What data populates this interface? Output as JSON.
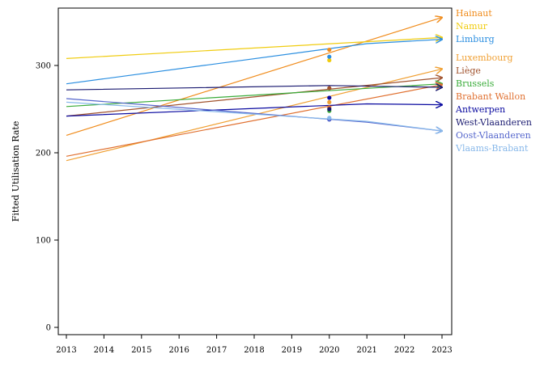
{
  "chart_data": {
    "type": "line",
    "title": "",
    "xlabel": "",
    "ylabel": "Fitted Utilisation Rate",
    "xlim": [
      2013,
      2023
    ],
    "ylim": [
      0,
      360
    ],
    "xticks": [
      2013,
      2014,
      2015,
      2016,
      2017,
      2018,
      2019,
      2020,
      2021,
      2022,
      2023
    ],
    "yticks": [
      0,
      100,
      200,
      300
    ],
    "grid": false,
    "legend_placement": "right",
    "series": [
      {
        "name": "Hainaut",
        "color": "#f08c1c",
        "x": [
          2013,
          2023
        ],
        "y": [
          220,
          355
        ],
        "point_2020": 318
      },
      {
        "name": "Namur",
        "color": "#f0cc10",
        "x": [
          2013,
          2023
        ],
        "y": [
          308,
          332
        ],
        "point_2020": 306
      },
      {
        "name": "Limburg",
        "color": "#2a8ee0",
        "x": [
          2013,
          2021,
          2023
        ],
        "y": [
          279,
          325,
          330
        ],
        "point_2020": 310
      },
      {
        "name": "Luxembourg",
        "color": "#f0a033",
        "x": [
          2013,
          2023
        ],
        "y": [
          191,
          296
        ],
        "point_2020": 258
      },
      {
        "name": "Liège",
        "color": "#a0522d",
        "x": [
          2013,
          2023
        ],
        "y": [
          242,
          286
        ],
        "point_2020": 274
      },
      {
        "name": "Brussels",
        "color": "#3aac3a",
        "x": [
          2013,
          2023
        ],
        "y": [
          253,
          279
        ],
        "point_2020": 248
      },
      {
        "name": "Brabant Wallon",
        "color": "#e07030",
        "x": [
          2013,
          2023
        ],
        "y": [
          196,
          278
        ],
        "point_2020": 252
      },
      {
        "name": "Antwerpen",
        "color": "#0a0aa0",
        "x": [
          2013,
          2021,
          2023
        ],
        "y": [
          242,
          256,
          255
        ],
        "point_2020": 263
      },
      {
        "name": "West-Vlaanderen",
        "color": "#1a1a70",
        "x": [
          2013,
          2020,
          2023
        ],
        "y": [
          272,
          277,
          275
        ],
        "point_2020": 250
      },
      {
        "name": "Oost-Vlaanderen",
        "color": "#5566cc",
        "x": [
          2013,
          2021,
          2023
        ],
        "y": [
          262,
          235,
          225
        ],
        "point_2020": 238
      },
      {
        "name": "Vlaams-Brabant",
        "color": "#88b8ea",
        "x": [
          2013,
          2021,
          2023
        ],
        "y": [
          258,
          236,
          225
        ],
        "point_2020": 240
      }
    ]
  }
}
